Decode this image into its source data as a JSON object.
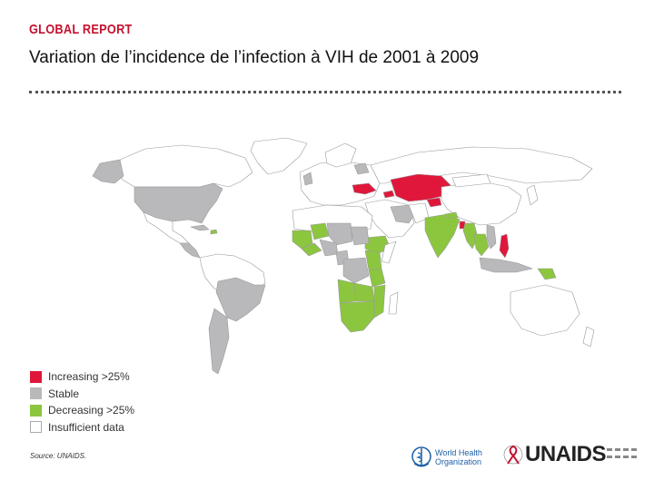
{
  "header": {
    "report_label": "GLOBAL REPORT",
    "title": "Variation de l’incidence de l’infection à VIH de 2001 à 2009"
  },
  "legend": {
    "items": [
      {
        "label": "Increasing >25%",
        "color": "#e0173b"
      },
      {
        "label": "Stable",
        "color": "#b9b9bb"
      },
      {
        "label": "Decreasing >25%",
        "color": "#8cc63f"
      },
      {
        "label": "Insufficient data",
        "color": "#ffffff"
      }
    ]
  },
  "colors": {
    "increasing": "#e0173b",
    "stable": "#b9b9bb",
    "decreasing": "#8cc63f",
    "insufficient": "#ffffff",
    "border": "#9a9a9a"
  },
  "footer": {
    "source": "Source: UNAIDS.",
    "who_line1": "World Health",
    "who_line2": "Organization",
    "unaids": "UNAIDS"
  }
}
